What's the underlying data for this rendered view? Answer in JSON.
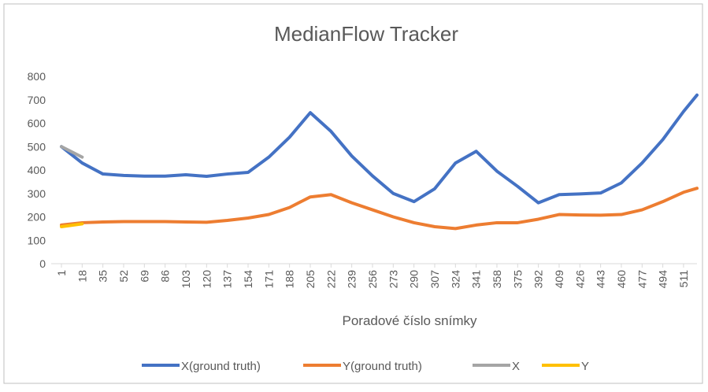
{
  "chart_data": {
    "type": "line",
    "title": "MedianFlow Tracker",
    "x_label": "Poradové číslo snímky",
    "x": [
      1,
      18,
      35,
      52,
      69,
      86,
      103,
      120,
      137,
      154,
      171,
      188,
      205,
      222,
      239,
      256,
      273,
      290,
      307,
      324,
      341,
      358,
      375,
      392,
      409,
      426,
      443,
      460,
      477,
      494,
      511,
      522
    ],
    "series": [
      {
        "name": "X(ground truth)",
        "color": "#4472c4",
        "values": [
          500,
          430,
          383,
          377,
          374,
          374,
          380,
          373,
          383,
          390,
          455,
          540,
          645,
          565,
          460,
          375,
          300,
          265,
          320,
          430,
          480,
          395,
          330,
          260,
          295,
          298,
          302,
          345,
          430,
          530,
          650,
          720
        ]
      },
      {
        "name": "Y(ground truth)",
        "color": "#ed7d31",
        "values": [
          165,
          175,
          178,
          180,
          180,
          180,
          178,
          177,
          185,
          195,
          210,
          240,
          285,
          295,
          260,
          230,
          200,
          175,
          158,
          150,
          165,
          175,
          175,
          190,
          210,
          208,
          207,
          210,
          230,
          265,
          305,
          322
        ]
      },
      {
        "name": "X",
        "color": "#a5a5a5",
        "values": [
          500,
          455,
          null,
          null,
          null,
          null,
          null,
          null,
          null,
          null,
          null,
          null,
          null,
          null,
          null,
          null,
          null,
          null,
          null,
          null,
          null,
          null,
          null,
          null,
          null,
          null,
          null,
          null,
          null,
          null,
          null,
          null
        ]
      },
      {
        "name": "Y",
        "color": "#ffc000",
        "values": [
          158,
          170,
          null,
          null,
          null,
          null,
          null,
          null,
          null,
          null,
          null,
          null,
          null,
          null,
          null,
          null,
          null,
          null,
          null,
          null,
          null,
          null,
          null,
          null,
          null,
          null,
          null,
          null,
          null,
          null,
          null,
          null
        ]
      }
    ],
    "xlim": [
      1,
      522
    ],
    "xticks": [
      1,
      18,
      35,
      52,
      69,
      86,
      103,
      120,
      137,
      154,
      171,
      188,
      205,
      222,
      239,
      256,
      273,
      290,
      307,
      324,
      341,
      358,
      375,
      392,
      409,
      426,
      443,
      460,
      477,
      494,
      511
    ],
    "ylim": [
      0,
      800
    ],
    "yticks": [
      0,
      100,
      200,
      300,
      400,
      500,
      600,
      700,
      800
    ],
    "grid": false,
    "legend": "bottom"
  }
}
